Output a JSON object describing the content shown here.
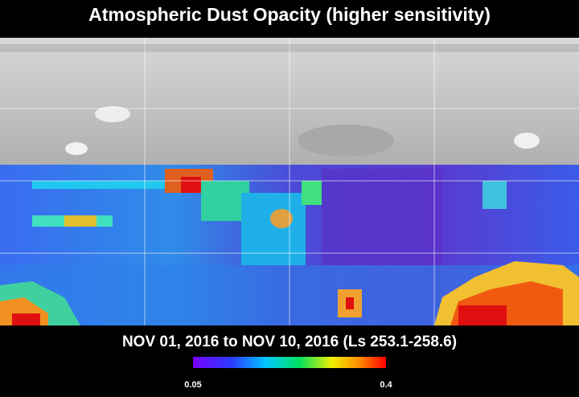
{
  "title": "Atmospheric Dust Opacity (higher sensitivity)",
  "period": "NOV 01, 2016 to NOV 10, 2016 (Ls 253.1-258.6)",
  "colorbar": {
    "min": 0.05,
    "max": 0.4
  }
}
